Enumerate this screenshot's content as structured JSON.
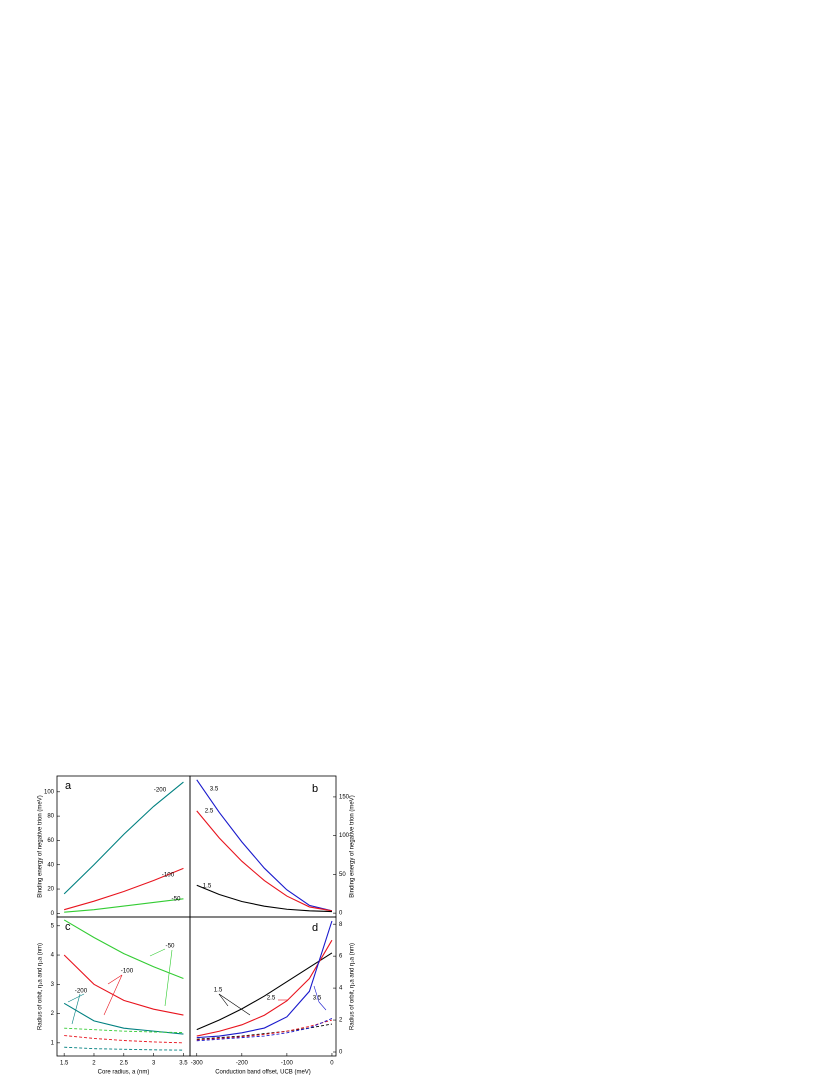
{
  "chart_data": [
    {
      "type": "line",
      "title": "a",
      "y_label": "Binding energy of negative trion (meV)",
      "x": [
        1.5,
        2.0,
        2.5,
        3.0,
        3.5
      ],
      "xlim": [
        1.38,
        3.61
      ],
      "ylim": [
        -3,
        113
      ],
      "yticks": [
        0,
        20,
        40,
        60,
        80,
        100
      ],
      "series": [
        {
          "name": "-200",
          "color": "#008080",
          "values": [
            16,
            40,
            65,
            88,
            108
          ]
        },
        {
          "name": "-100",
          "color": "#e8141e",
          "values": [
            3,
            10,
            18,
            27,
            37
          ]
        },
        {
          "name": "-50",
          "color": "#33cc33",
          "values": [
            1,
            3,
            6,
            9,
            12
          ]
        }
      ]
    },
    {
      "type": "line",
      "title": "b",
      "y_label": "Binding energy of negative trion (meV)",
      "x": [
        -300,
        -250,
        -200,
        -150,
        -100,
        -50,
        0
      ],
      "xlim": [
        -315,
        9
      ],
      "ylim": [
        -5,
        177
      ],
      "yticks": [
        0,
        50,
        100,
        150
      ],
      "series": [
        {
          "name": "3.5",
          "color": "#1a1acc",
          "values": [
            172,
            130,
            92,
            58,
            30,
            10,
            3
          ]
        },
        {
          "name": "2.5",
          "color": "#e8141e",
          "values": [
            132,
            97,
            67,
            42,
            22,
            8,
            3
          ]
        },
        {
          "name": "1.5",
          "color": "#000000",
          "values": [
            36,
            24,
            15,
            9,
            5,
            3,
            2
          ]
        }
      ]
    },
    {
      "type": "line",
      "title": "c",
      "y_label": "Radius of orbit, η₁a and η₂a (nm)",
      "x_label": "Core radius, a (nm)",
      "x": [
        1.5,
        2.0,
        2.5,
        3.0,
        3.5
      ],
      "xlim": [
        1.38,
        3.61
      ],
      "xticks": [
        1.5,
        2.0,
        2.5,
        3.0,
        3.5
      ],
      "ylim": [
        0.55,
        5.3
      ],
      "yticks": [
        1,
        2,
        3,
        4,
        5
      ],
      "series": [
        {
          "name": "-50",
          "color": "#33cc33",
          "values": [
            5.2,
            4.6,
            4.05,
            3.6,
            3.2
          ]
        },
        {
          "name": "-100",
          "color": "#e8141e",
          "values": [
            4.0,
            3.0,
            2.45,
            2.15,
            1.95
          ]
        },
        {
          "name": "-200",
          "color": "#008080",
          "values": [
            2.35,
            1.75,
            1.5,
            1.4,
            1.3
          ]
        },
        {
          "color": "#33cc33",
          "dash": true,
          "values": [
            1.5,
            1.45,
            1.4,
            1.37,
            1.35
          ]
        },
        {
          "color": "#e8141e",
          "dash": true,
          "values": [
            1.25,
            1.15,
            1.08,
            1.03,
            1.0
          ]
        },
        {
          "color": "#008080",
          "dash": true,
          "values": [
            0.85,
            0.8,
            0.78,
            0.76,
            0.75
          ]
        }
      ]
    },
    {
      "type": "line",
      "title": "d",
      "y_label": "Radius of orbit, η₁a and η₂a (nm)",
      "x_label": "Conduction band offset, UCB (meV)",
      "x": [
        -300,
        -250,
        -200,
        -150,
        -100,
        -50,
        0
      ],
      "xlim": [
        -315,
        9
      ],
      "xticks": [
        -300,
        -200,
        -100,
        0
      ],
      "ylim": [
        -0.25,
        8.45
      ],
      "yticks": [
        0,
        2,
        4,
        6,
        8
      ],
      "series": [
        {
          "name": "1.5",
          "color": "#000000",
          "values": [
            1.4,
            2.0,
            2.7,
            3.5,
            4.4,
            5.3,
            6.2
          ]
        },
        {
          "name": "2.5",
          "color": "#e8141e",
          "values": [
            1.0,
            1.3,
            1.7,
            2.3,
            3.2,
            4.6,
            7.0
          ]
        },
        {
          "name": "3.5",
          "color": "#1a1acc",
          "values": [
            0.9,
            1.0,
            1.2,
            1.5,
            2.2,
            3.8,
            8.2
          ]
        },
        {
          "color": "#000000",
          "dash": true,
          "values": [
            0.8,
            0.9,
            1.0,
            1.15,
            1.3,
            1.5,
            1.75
          ]
        },
        {
          "color": "#e8141e",
          "dash": true,
          "values": [
            0.75,
            0.85,
            0.95,
            1.1,
            1.3,
            1.6,
            2.0
          ]
        },
        {
          "color": "#1a1acc",
          "dash": true,
          "values": [
            0.7,
            0.8,
            0.9,
            1.0,
            1.2,
            1.5,
            2.1
          ]
        }
      ]
    }
  ]
}
